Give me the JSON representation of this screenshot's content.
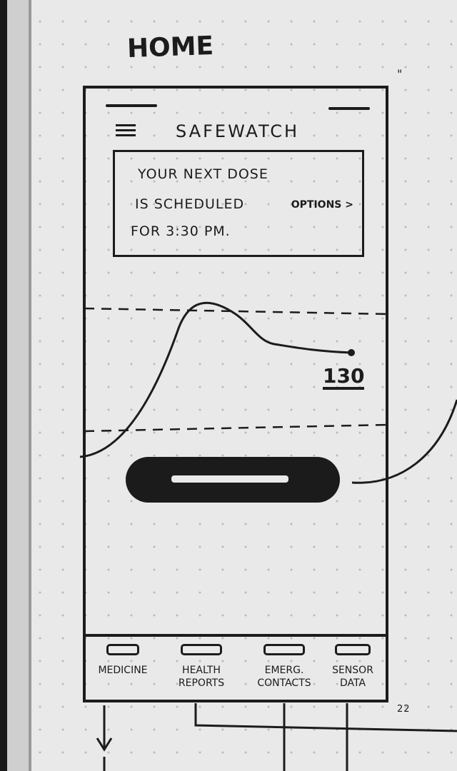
{
  "page": {
    "heading": "HOME",
    "page_number": "22",
    "margin_mark": "\""
  },
  "app": {
    "title": "SAFEWATCH",
    "menu_icon": "hamburger-menu-icon"
  },
  "dose_card": {
    "lines": [
      "YOUR NEXT DOSE",
      "IS SCHEDULED",
      "FOR 3:30 PM."
    ],
    "options_label": "OPTIONS >"
  },
  "reading": {
    "value": "130"
  },
  "bottom_nav": [
    {
      "label": "MEDICINE"
    },
    {
      "label": "HEALTH REPORTS"
    },
    {
      "label": "EMERG. CONTACTS"
    },
    {
      "label": "SENSOR DATA"
    }
  ],
  "colors": {
    "ink": "#1c1c1c",
    "paper": "#e9e9e9"
  }
}
